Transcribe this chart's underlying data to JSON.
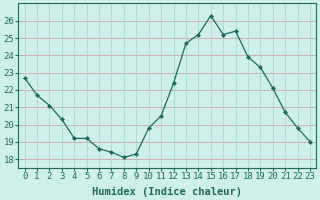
{
  "x": [
    0,
    1,
    2,
    3,
    4,
    5,
    6,
    7,
    8,
    9,
    10,
    11,
    12,
    13,
    14,
    15,
    16,
    17,
    18,
    19,
    20,
    21,
    22,
    23
  ],
  "y": [
    22.7,
    21.7,
    21.1,
    20.3,
    19.2,
    19.2,
    18.6,
    18.4,
    18.1,
    18.3,
    19.8,
    20.5,
    22.4,
    24.7,
    25.2,
    26.3,
    25.2,
    25.4,
    23.9,
    23.3,
    22.1,
    20.7,
    19.8,
    19.0
  ],
  "line_color": "#1a6b5a",
  "marker": "D",
  "marker_size": 2.5,
  "bg_color": "#cff0ea",
  "grid_color_h": "#d4a0a0",
  "grid_color_v": "#a8d8d0",
  "xlabel": "Humidex (Indice chaleur)",
  "xlim": [
    -0.5,
    23.5
  ],
  "ylim": [
    17.5,
    27.0
  ],
  "yticks": [
    18,
    19,
    20,
    21,
    22,
    23,
    24,
    25,
    26
  ],
  "xticks": [
    0,
    1,
    2,
    3,
    4,
    5,
    6,
    7,
    8,
    9,
    10,
    11,
    12,
    13,
    14,
    15,
    16,
    17,
    18,
    19,
    20,
    21,
    22,
    23
  ],
  "xlabel_fontsize": 7.5,
  "tick_fontsize": 6.5
}
